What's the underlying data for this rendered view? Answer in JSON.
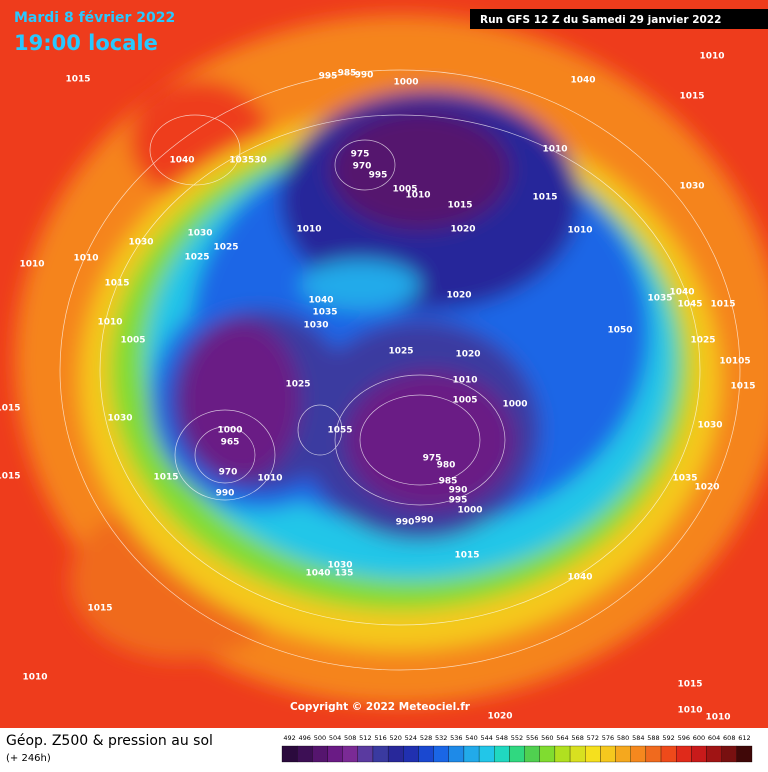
{
  "header": {
    "date": "Mardi 8 février 2022",
    "time": "19:00 locale",
    "run": "Run GFS 12 Z du Samedi 29 janvier 2022"
  },
  "copyright": "Copyright © 2022 Meteociel.fr",
  "footer": {
    "title": "Géop. Z500 & pression au sol",
    "lead": "(+ 246h)"
  },
  "scale": {
    "values": [
      492,
      496,
      500,
      504,
      508,
      512,
      516,
      520,
      524,
      528,
      532,
      536,
      540,
      544,
      548,
      552,
      556,
      560,
      564,
      568,
      572,
      576,
      580,
      584,
      588,
      592,
      596,
      600,
      604,
      608,
      612
    ],
    "colors": [
      "#2b0a3d",
      "#3d0f55",
      "#55156e",
      "#6a1b85",
      "#7a2a95",
      "#5a3aa0",
      "#3a3aa0",
      "#28289a",
      "#2030b0",
      "#1a48d0",
      "#1a66e6",
      "#1e8ae8",
      "#22aaea",
      "#22c6e8",
      "#20d8c0",
      "#30d880",
      "#50d050",
      "#80dc30",
      "#b0e020",
      "#d8e020",
      "#f5e01e",
      "#f5c81e",
      "#f5a81e",
      "#f5881e",
      "#f06a1e",
      "#ee4a1a",
      "#e02a1a",
      "#c81a1a",
      "#a01414",
      "#781010",
      "#400808"
    ]
  },
  "isobars": [
    1015,
    1040,
    103530,
    995,
    985,
    990,
    1000,
    1040,
    1010,
    1015,
    975,
    970,
    995,
    1005,
    1010,
    1010,
    1015,
    1015,
    1030,
    1030,
    1030,
    1025,
    1025,
    1010,
    1020,
    1010,
    1010,
    1010,
    1015,
    1040,
    1035,
    1030,
    1020,
    1035,
    1040,
    1045,
    1015,
    1010,
    1005,
    1050,
    1025,
    1020,
    1025,
    10105,
    1015,
    1025,
    1010,
    1005,
    1000,
    1015,
    1030,
    1030,
    1000,
    965,
    1055,
    975,
    980,
    970,
    985,
    990,
    1015,
    1010,
    1035,
    1020,
    1015,
    990,
    995,
    1000,
    990,
    990,
    1015,
    1030,
    1040,
    135,
    1040,
    1015,
    1010,
    1015,
    1010,
    1010,
    1020
  ]
}
